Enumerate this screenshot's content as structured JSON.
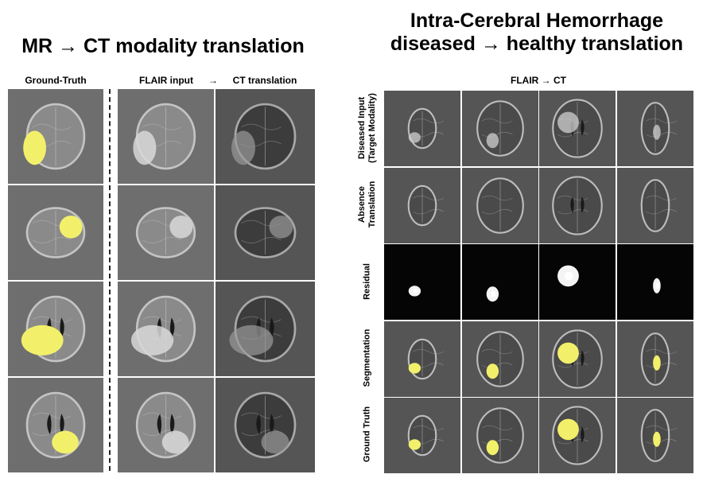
{
  "left_panel": {
    "title": "MR → CT modality translation",
    "col_ground_truth": "Ground-Truth",
    "col_flair_input": "FLAIR input",
    "col_arrow": "→",
    "col_ct_translation": "CT translation",
    "rows": 4
  },
  "right_panel": {
    "title_line1": "Intra-Cerebral Hemorrhage",
    "title_line2": "diseased → healthy translation",
    "column_header": "FLAIR → CT",
    "row_labels": [
      "Diseased Input\n(Target Modality)",
      "Absence\nTranslation",
      "Residual",
      "Segmentation",
      "Ground Truth"
    ],
    "columns": 4
  },
  "colors": {
    "segmentation_overlay": "#f2f06a",
    "mr_background": "#6e6e6e",
    "ct_background": "#555555",
    "residual_background": "#050505"
  }
}
